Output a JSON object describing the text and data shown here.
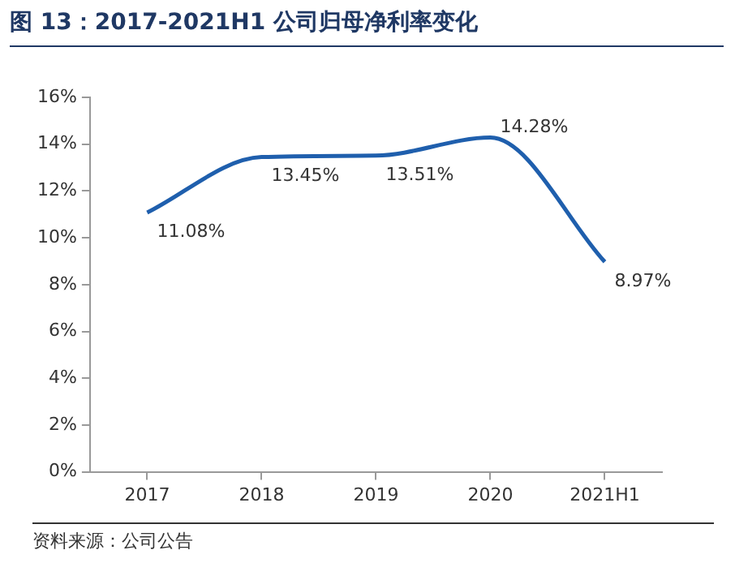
{
  "chart_data": {
    "type": "line",
    "title": "图 13：2017-2021H1 公司归母净利率变化",
    "categories": [
      "2017",
      "2018",
      "2019",
      "2020",
      "2021H1"
    ],
    "series": [
      {
        "color": "#1f5fad",
        "values": [
          11.08,
          13.45,
          13.51,
          14.28,
          8.97
        ],
        "value_labels": [
          "11.08%",
          "13.45%",
          "13.51%",
          "14.28%",
          "8.97%"
        ]
      }
    ],
    "ylim": [
      0,
      16
    ],
    "yticks": [
      {
        "value": 0,
        "label": "0%"
      },
      {
        "value": 2,
        "label": "2%"
      },
      {
        "value": 4,
        "label": "4%"
      },
      {
        "value": 6,
        "label": "6%"
      },
      {
        "value": 8,
        "label": "8%"
      },
      {
        "value": 10,
        "label": "10%"
      },
      {
        "value": 12,
        "label": "12%"
      },
      {
        "value": 14,
        "label": "14%"
      },
      {
        "value": 16,
        "label": "16%"
      }
    ],
    "grid": false,
    "legend": false,
    "marker": "none",
    "line_style": "solid",
    "annotations": [
      "资料来源：公司公告"
    ]
  }
}
